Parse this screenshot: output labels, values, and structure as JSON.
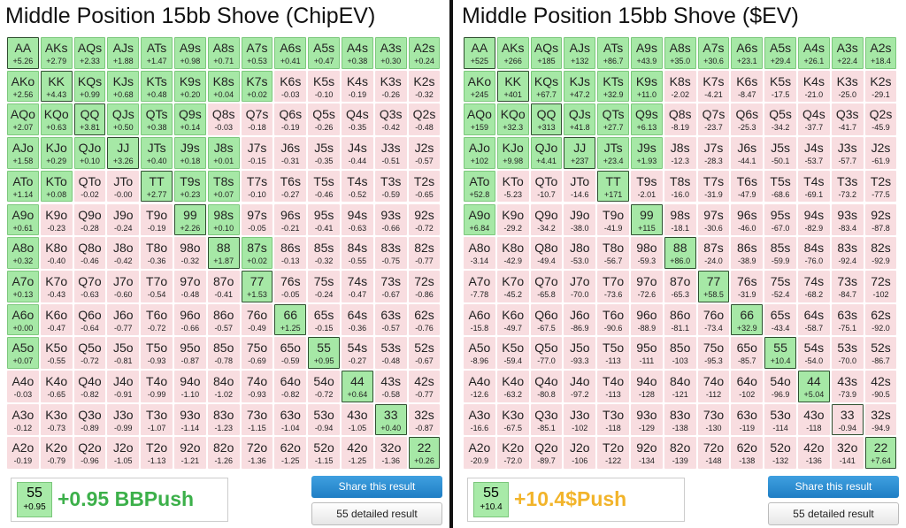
{
  "hands": [
    [
      "AA",
      "AKs",
      "AQs",
      "AJs",
      "ATs",
      "A9s",
      "A8s",
      "A7s",
      "A6s",
      "A5s",
      "A4s",
      "A3s",
      "A2s"
    ],
    [
      "AKo",
      "KK",
      "KQs",
      "KJs",
      "KTs",
      "K9s",
      "K8s",
      "K7s",
      "K6s",
      "K5s",
      "K4s",
      "K3s",
      "K2s"
    ],
    [
      "AQo",
      "KQo",
      "QQ",
      "QJs",
      "QTs",
      "Q9s",
      "Q8s",
      "Q7s",
      "Q6s",
      "Q5s",
      "Q4s",
      "Q3s",
      "Q2s"
    ],
    [
      "AJo",
      "KJo",
      "QJo",
      "JJ",
      "JTs",
      "J9s",
      "J8s",
      "J7s",
      "J6s",
      "J5s",
      "J4s",
      "J3s",
      "J2s"
    ],
    [
      "ATo",
      "KTo",
      "QTo",
      "JTo",
      "TT",
      "T9s",
      "T8s",
      "T7s",
      "T6s",
      "T5s",
      "T4s",
      "T3s",
      "T2s"
    ],
    [
      "A9o",
      "K9o",
      "Q9o",
      "J9o",
      "T9o",
      "99",
      "98s",
      "97s",
      "96s",
      "95s",
      "94s",
      "93s",
      "92s"
    ],
    [
      "A8o",
      "K8o",
      "Q8o",
      "J8o",
      "T8o",
      "98o",
      "88",
      "87s",
      "86s",
      "85s",
      "84s",
      "83s",
      "82s"
    ],
    [
      "A7o",
      "K7o",
      "Q7o",
      "J7o",
      "T7o",
      "97o",
      "87o",
      "77",
      "76s",
      "75s",
      "74s",
      "73s",
      "72s"
    ],
    [
      "A6o",
      "K6o",
      "Q6o",
      "J6o",
      "T6o",
      "96o",
      "86o",
      "76o",
      "66",
      "65s",
      "64s",
      "63s",
      "62s"
    ],
    [
      "A5o",
      "K5o",
      "Q5o",
      "J5o",
      "T5o",
      "95o",
      "85o",
      "75o",
      "65o",
      "55",
      "54s",
      "53s",
      "52s"
    ],
    [
      "A4o",
      "K4o",
      "Q4o",
      "J4o",
      "T4o",
      "94o",
      "84o",
      "74o",
      "64o",
      "54o",
      "44",
      "43s",
      "42s"
    ],
    [
      "A3o",
      "K3o",
      "Q3o",
      "J3o",
      "T3o",
      "93o",
      "83o",
      "73o",
      "63o",
      "53o",
      "43o",
      "33",
      "32s"
    ],
    [
      "A2o",
      "K2o",
      "Q2o",
      "J2o",
      "T2o",
      "92o",
      "82o",
      "72o",
      "62o",
      "52o",
      "42o",
      "32o",
      "22"
    ]
  ],
  "panels": [
    {
      "title": "Middle Position 15bb Shove (ChipEV)",
      "ev": [
        [
          5.26,
          2.79,
          2.33,
          1.88,
          1.47,
          0.98,
          0.71,
          0.53,
          0.41,
          0.47,
          0.38,
          0.3,
          0.24
        ],
        [
          2.56,
          4.43,
          0.99,
          0.68,
          0.48,
          0.2,
          0.04,
          0.02,
          -0.03,
          -0.1,
          -0.19,
          -0.26,
          -0.32
        ],
        [
          2.07,
          0.63,
          3.81,
          0.5,
          0.38,
          0.14,
          -0.03,
          -0.18,
          -0.19,
          -0.26,
          -0.35,
          -0.42,
          -0.48
        ],
        [
          1.58,
          0.29,
          0.1,
          3.26,
          0.4,
          0.18,
          0.01,
          -0.15,
          -0.31,
          -0.35,
          -0.44,
          -0.51,
          -0.57
        ],
        [
          1.14,
          0.08,
          -0.02,
          -0.0,
          2.77,
          0.23,
          0.07,
          -0.1,
          -0.27,
          -0.46,
          -0.52,
          -0.59,
          -0.65
        ],
        [
          0.61,
          -0.23,
          -0.28,
          -0.24,
          -0.19,
          2.26,
          0.1,
          -0.05,
          -0.21,
          -0.41,
          -0.63,
          -0.66,
          -0.72
        ],
        [
          0.32,
          -0.4,
          -0.46,
          -0.42,
          -0.36,
          -0.32,
          1.87,
          0.02,
          -0.13,
          -0.32,
          -0.55,
          -0.75,
          -0.77
        ],
        [
          0.13,
          -0.43,
          -0.63,
          -0.6,
          -0.54,
          -0.48,
          -0.41,
          1.53,
          -0.05,
          -0.24,
          -0.47,
          -0.67,
          -0.86
        ],
        [
          0.0,
          -0.47,
          -0.64,
          -0.77,
          -0.72,
          -0.66,
          -0.57,
          -0.49,
          1.25,
          -0.15,
          -0.36,
          -0.57,
          -0.76
        ],
        [
          0.07,
          -0.55,
          -0.72,
          -0.81,
          -0.93,
          -0.87,
          -0.78,
          -0.69,
          -0.59,
          0.95,
          -0.27,
          -0.48,
          -0.67
        ],
        [
          -0.03,
          -0.65,
          -0.82,
          -0.91,
          -0.99,
          -1.1,
          -1.02,
          -0.93,
          -0.82,
          -0.72,
          0.64,
          -0.58,
          -0.77
        ],
        [
          -0.12,
          -0.73,
          -0.89,
          -0.99,
          -1.07,
          -1.14,
          -1.23,
          -1.15,
          -1.04,
          -0.94,
          -1.05,
          0.4,
          -0.87
        ],
        [
          -0.19,
          -0.79,
          -0.96,
          -1.05,
          -1.13,
          -1.21,
          -1.26,
          -1.36,
          -1.25,
          -1.15,
          -1.25,
          -1.36,
          0.26
        ]
      ],
      "ev_labels": [
        [
          "+5.26",
          "+2.79",
          "+2.33",
          "+1.88",
          "+1.47",
          "+0.98",
          "+0.71",
          "+0.53",
          "+0.41",
          "+0.47",
          "+0.38",
          "+0.30",
          "+0.24"
        ],
        [
          "+2.56",
          "+4.43",
          "+0.99",
          "+0.68",
          "+0.48",
          "+0.20",
          "+0.04",
          "+0.02",
          "-0.03",
          "-0.10",
          "-0.19",
          "-0.26",
          "-0.32"
        ],
        [
          "+2.07",
          "+0.63",
          "+3.81",
          "+0.50",
          "+0.38",
          "+0.14",
          "-0.03",
          "-0.18",
          "-0.19",
          "-0.26",
          "-0.35",
          "-0.42",
          "-0.48"
        ],
        [
          "+1.58",
          "+0.29",
          "+0.10",
          "+3.26",
          "+0.40",
          "+0.18",
          "+0.01",
          "-0.15",
          "-0.31",
          "-0.35",
          "-0.44",
          "-0.51",
          "-0.57"
        ],
        [
          "+1.14",
          "+0.08",
          "-0.02",
          "-0.00",
          "+2.77",
          "+0.23",
          "+0.07",
          "-0.10",
          "-0.27",
          "-0.46",
          "-0.52",
          "-0.59",
          "-0.65"
        ],
        [
          "+0.61",
          "-0.23",
          "-0.28",
          "-0.24",
          "-0.19",
          "+2.26",
          "+0.10",
          "-0.05",
          "-0.21",
          "-0.41",
          "-0.63",
          "-0.66",
          "-0.72"
        ],
        [
          "+0.32",
          "-0.40",
          "-0.46",
          "-0.42",
          "-0.36",
          "-0.32",
          "+1.87",
          "+0.02",
          "-0.13",
          "-0.32",
          "-0.55",
          "-0.75",
          "-0.77"
        ],
        [
          "+0.13",
          "-0.43",
          "-0.63",
          "-0.60",
          "-0.54",
          "-0.48",
          "-0.41",
          "+1.53",
          "-0.05",
          "-0.24",
          "-0.47",
          "-0.67",
          "-0.86"
        ],
        [
          "+0.00",
          "-0.47",
          "-0.64",
          "-0.77",
          "-0.72",
          "-0.66",
          "-0.57",
          "-0.49",
          "+1.25",
          "-0.15",
          "-0.36",
          "-0.57",
          "-0.76"
        ],
        [
          "+0.07",
          "-0.55",
          "-0.72",
          "-0.81",
          "-0.93",
          "-0.87",
          "-0.78",
          "-0.69",
          "-0.59",
          "+0.95",
          "-0.27",
          "-0.48",
          "-0.67"
        ],
        [
          "-0.03",
          "-0.65",
          "-0.82",
          "-0.91",
          "-0.99",
          "-1.10",
          "-1.02",
          "-0.93",
          "-0.82",
          "-0.72",
          "+0.64",
          "-0.58",
          "-0.77"
        ],
        [
          "-0.12",
          "-0.73",
          "-0.89",
          "-0.99",
          "-1.07",
          "-1.14",
          "-1.23",
          "-1.15",
          "-1.04",
          "-0.94",
          "-1.05",
          "+0.40",
          "-0.87"
        ],
        [
          "-0.19",
          "-0.79",
          "-0.96",
          "-1.05",
          "-1.13",
          "-1.21",
          "-1.26",
          "-1.36",
          "-1.25",
          "-1.15",
          "-1.25",
          "-1.36",
          "+0.26"
        ]
      ],
      "selected": {
        "hand": "55",
        "ev": "+0.95",
        "result": "+0.95 BBPush",
        "color": "#3cb04a"
      },
      "share": "Share this result",
      "detail": "55 detailed result"
    },
    {
      "title": "Middle Position 15bb Shove ($EV)",
      "ev": [
        [
          525,
          266,
          185,
          132,
          86.7,
          43.9,
          35.0,
          30.6,
          23.1,
          29.4,
          26.1,
          22.4,
          18.4
        ],
        [
          245,
          401,
          67.7,
          47.2,
          32.9,
          11.0,
          -2.02,
          -4.21,
          -8.47,
          -17.5,
          -21.0,
          -25.0,
          -29.1
        ],
        [
          159,
          32.3,
          313,
          41.8,
          27.7,
          6.13,
          -8.19,
          -23.7,
          -25.3,
          -34.2,
          -37.7,
          -41.7,
          -45.9
        ],
        [
          102,
          9.98,
          4.41,
          237,
          23.4,
          1.93,
          -12.3,
          -28.3,
          -44.1,
          -50.1,
          -53.7,
          -57.7,
          -61.9
        ],
        [
          52.8,
          -5.23,
          -10.7,
          -14.6,
          171,
          -2.01,
          -16.0,
          -31.9,
          -47.9,
          -68.6,
          -69.1,
          -73.2,
          -77.5
        ],
        [
          6.84,
          -29.2,
          -34.2,
          -38.0,
          -41.9,
          115,
          -18.1,
          -30.6,
          -46.0,
          -67.0,
          -82.9,
          -83.4,
          -87.8
        ],
        [
          -3.14,
          -42.9,
          -49.4,
          -53.0,
          -56.7,
          -59.3,
          86.0,
          -24.0,
          -38.9,
          -59.9,
          -76.0,
          -92.4,
          -92.9
        ],
        [
          -7.78,
          -45.2,
          -65.8,
          -70.0,
          -73.6,
          -72.6,
          -65.3,
          58.5,
          -31.9,
          -52.4,
          -68.2,
          -84.7,
          -102
        ],
        [
          -15.8,
          -49.7,
          -67.5,
          -86.9,
          -90.6,
          -88.9,
          -81.1,
          -73.4,
          32.9,
          -43.4,
          -58.7,
          -75.1,
          -92.0
        ],
        [
          -8.96,
          -59.4,
          -77.0,
          -93.3,
          -113,
          -111,
          -103,
          -95.3,
          -85.7,
          10.4,
          -54.0,
          -70.0,
          -86.7
        ],
        [
          -12.6,
          -63.2,
          -80.8,
          -97.2,
          -113,
          -128,
          -121,
          -112,
          -102,
          -96.9,
          5.04,
          -73.9,
          -90.5
        ],
        [
          -16.6,
          -67.5,
          -85.1,
          -102,
          -118,
          -129,
          -138,
          -130,
          -119,
          -114,
          -118,
          -0.94,
          -94.9
        ],
        [
          -20.9,
          -72.0,
          -89.7,
          -106,
          -122,
          -134,
          -139,
          -148,
          -138,
          -132,
          -136,
          -141,
          7.64
        ]
      ],
      "ev_labels": [
        [
          "+525",
          "+266",
          "+185",
          "+132",
          "+86.7",
          "+43.9",
          "+35.0",
          "+30.6",
          "+23.1",
          "+29.4",
          "+26.1",
          "+22.4",
          "+18.4"
        ],
        [
          "+245",
          "+401",
          "+67.7",
          "+47.2",
          "+32.9",
          "+11.0",
          "-2.02",
          "-4.21",
          "-8.47",
          "-17.5",
          "-21.0",
          "-25.0",
          "-29.1"
        ],
        [
          "+159",
          "+32.3",
          "+313",
          "+41.8",
          "+27.7",
          "+6.13",
          "-8.19",
          "-23.7",
          "-25.3",
          "-34.2",
          "-37.7",
          "-41.7",
          "-45.9"
        ],
        [
          "+102",
          "+9.98",
          "+4.41",
          "+237",
          "+23.4",
          "+1.93",
          "-12.3",
          "-28.3",
          "-44.1",
          "-50.1",
          "-53.7",
          "-57.7",
          "-61.9"
        ],
        [
          "+52.8",
          "-5.23",
          "-10.7",
          "-14.6",
          "+171",
          "-2.01",
          "-16.0",
          "-31.9",
          "-47.9",
          "-68.6",
          "-69.1",
          "-73.2",
          "-77.5"
        ],
        [
          "+6.84",
          "-29.2",
          "-34.2",
          "-38.0",
          "-41.9",
          "+115",
          "-18.1",
          "-30.6",
          "-46.0",
          "-67.0",
          "-82.9",
          "-83.4",
          "-87.8"
        ],
        [
          "-3.14",
          "-42.9",
          "-49.4",
          "-53.0",
          "-56.7",
          "-59.3",
          "+86.0",
          "-24.0",
          "-38.9",
          "-59.9",
          "-76.0",
          "-92.4",
          "-92.9"
        ],
        [
          "-7.78",
          "-45.2",
          "-65.8",
          "-70.0",
          "-73.6",
          "-72.6",
          "-65.3",
          "+58.5",
          "-31.9",
          "-52.4",
          "-68.2",
          "-84.7",
          "-102"
        ],
        [
          "-15.8",
          "-49.7",
          "-67.5",
          "-86.9",
          "-90.6",
          "-88.9",
          "-81.1",
          "-73.4",
          "+32.9",
          "-43.4",
          "-58.7",
          "-75.1",
          "-92.0"
        ],
        [
          "-8.96",
          "-59.4",
          "-77.0",
          "-93.3",
          "-113",
          "-111",
          "-103",
          "-95.3",
          "-85.7",
          "+10.4",
          "-54.0",
          "-70.0",
          "-86.7"
        ],
        [
          "-12.6",
          "-63.2",
          "-80.8",
          "-97.2",
          "-113",
          "-128",
          "-121",
          "-112",
          "-102",
          "-96.9",
          "+5.04",
          "-73.9",
          "-90.5"
        ],
        [
          "-16.6",
          "-67.5",
          "-85.1",
          "-102",
          "-118",
          "-129",
          "-138",
          "-130",
          "-119",
          "-114",
          "-118",
          "-0.94",
          "-94.9"
        ],
        [
          "-20.9",
          "-72.0",
          "-89.7",
          "-106",
          "-122",
          "-134",
          "-139",
          "-148",
          "-138",
          "-132",
          "-136",
          "-141",
          "+7.64"
        ]
      ],
      "selected": {
        "hand": "55",
        "ev": "+10.4",
        "result": "+10.4$Push",
        "color": "#f2b42a"
      },
      "share": "Share this result",
      "detail": "55 detailed result"
    }
  ]
}
